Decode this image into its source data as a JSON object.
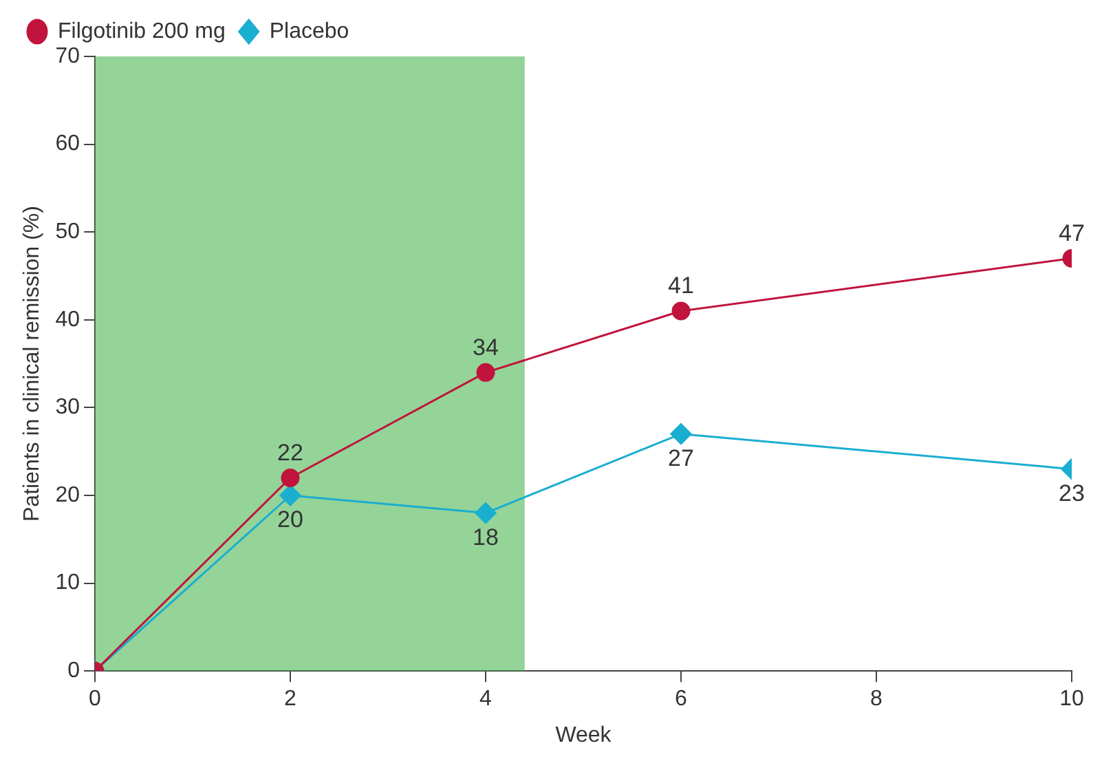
{
  "chart_data": {
    "type": "line",
    "xlabel": "Week",
    "ylabel": "Patients in clinical remission (%)",
    "x": [
      0,
      2,
      4,
      6,
      10
    ],
    "series": [
      {
        "name": "Filgotinib 200 mg",
        "color": "#c0143c",
        "marker": "circle",
        "values": [
          0,
          22,
          34,
          41,
          47
        ],
        "value_labels": [
          null,
          "22",
          "34",
          "41",
          "47"
        ]
      },
      {
        "name": "Placebo",
        "color": "#1aaed0",
        "marker": "diamond",
        "values": [
          0,
          20,
          18,
          27,
          23
        ],
        "value_labels": [
          null,
          "20",
          "18",
          "27",
          "23"
        ]
      }
    ],
    "xlim": [
      0,
      10
    ],
    "xticks": [
      0,
      2,
      4,
      6,
      8,
      10
    ],
    "ylim": [
      0,
      70
    ],
    "yticks": [
      0,
      10,
      20,
      30,
      40,
      50,
      60,
      70
    ],
    "bands": [
      {
        "axis": "x",
        "from": 0,
        "to": 4.4,
        "color": "#3cb043"
      }
    ],
    "grid": false,
    "legend": "top left",
    "line_style": "solid"
  }
}
